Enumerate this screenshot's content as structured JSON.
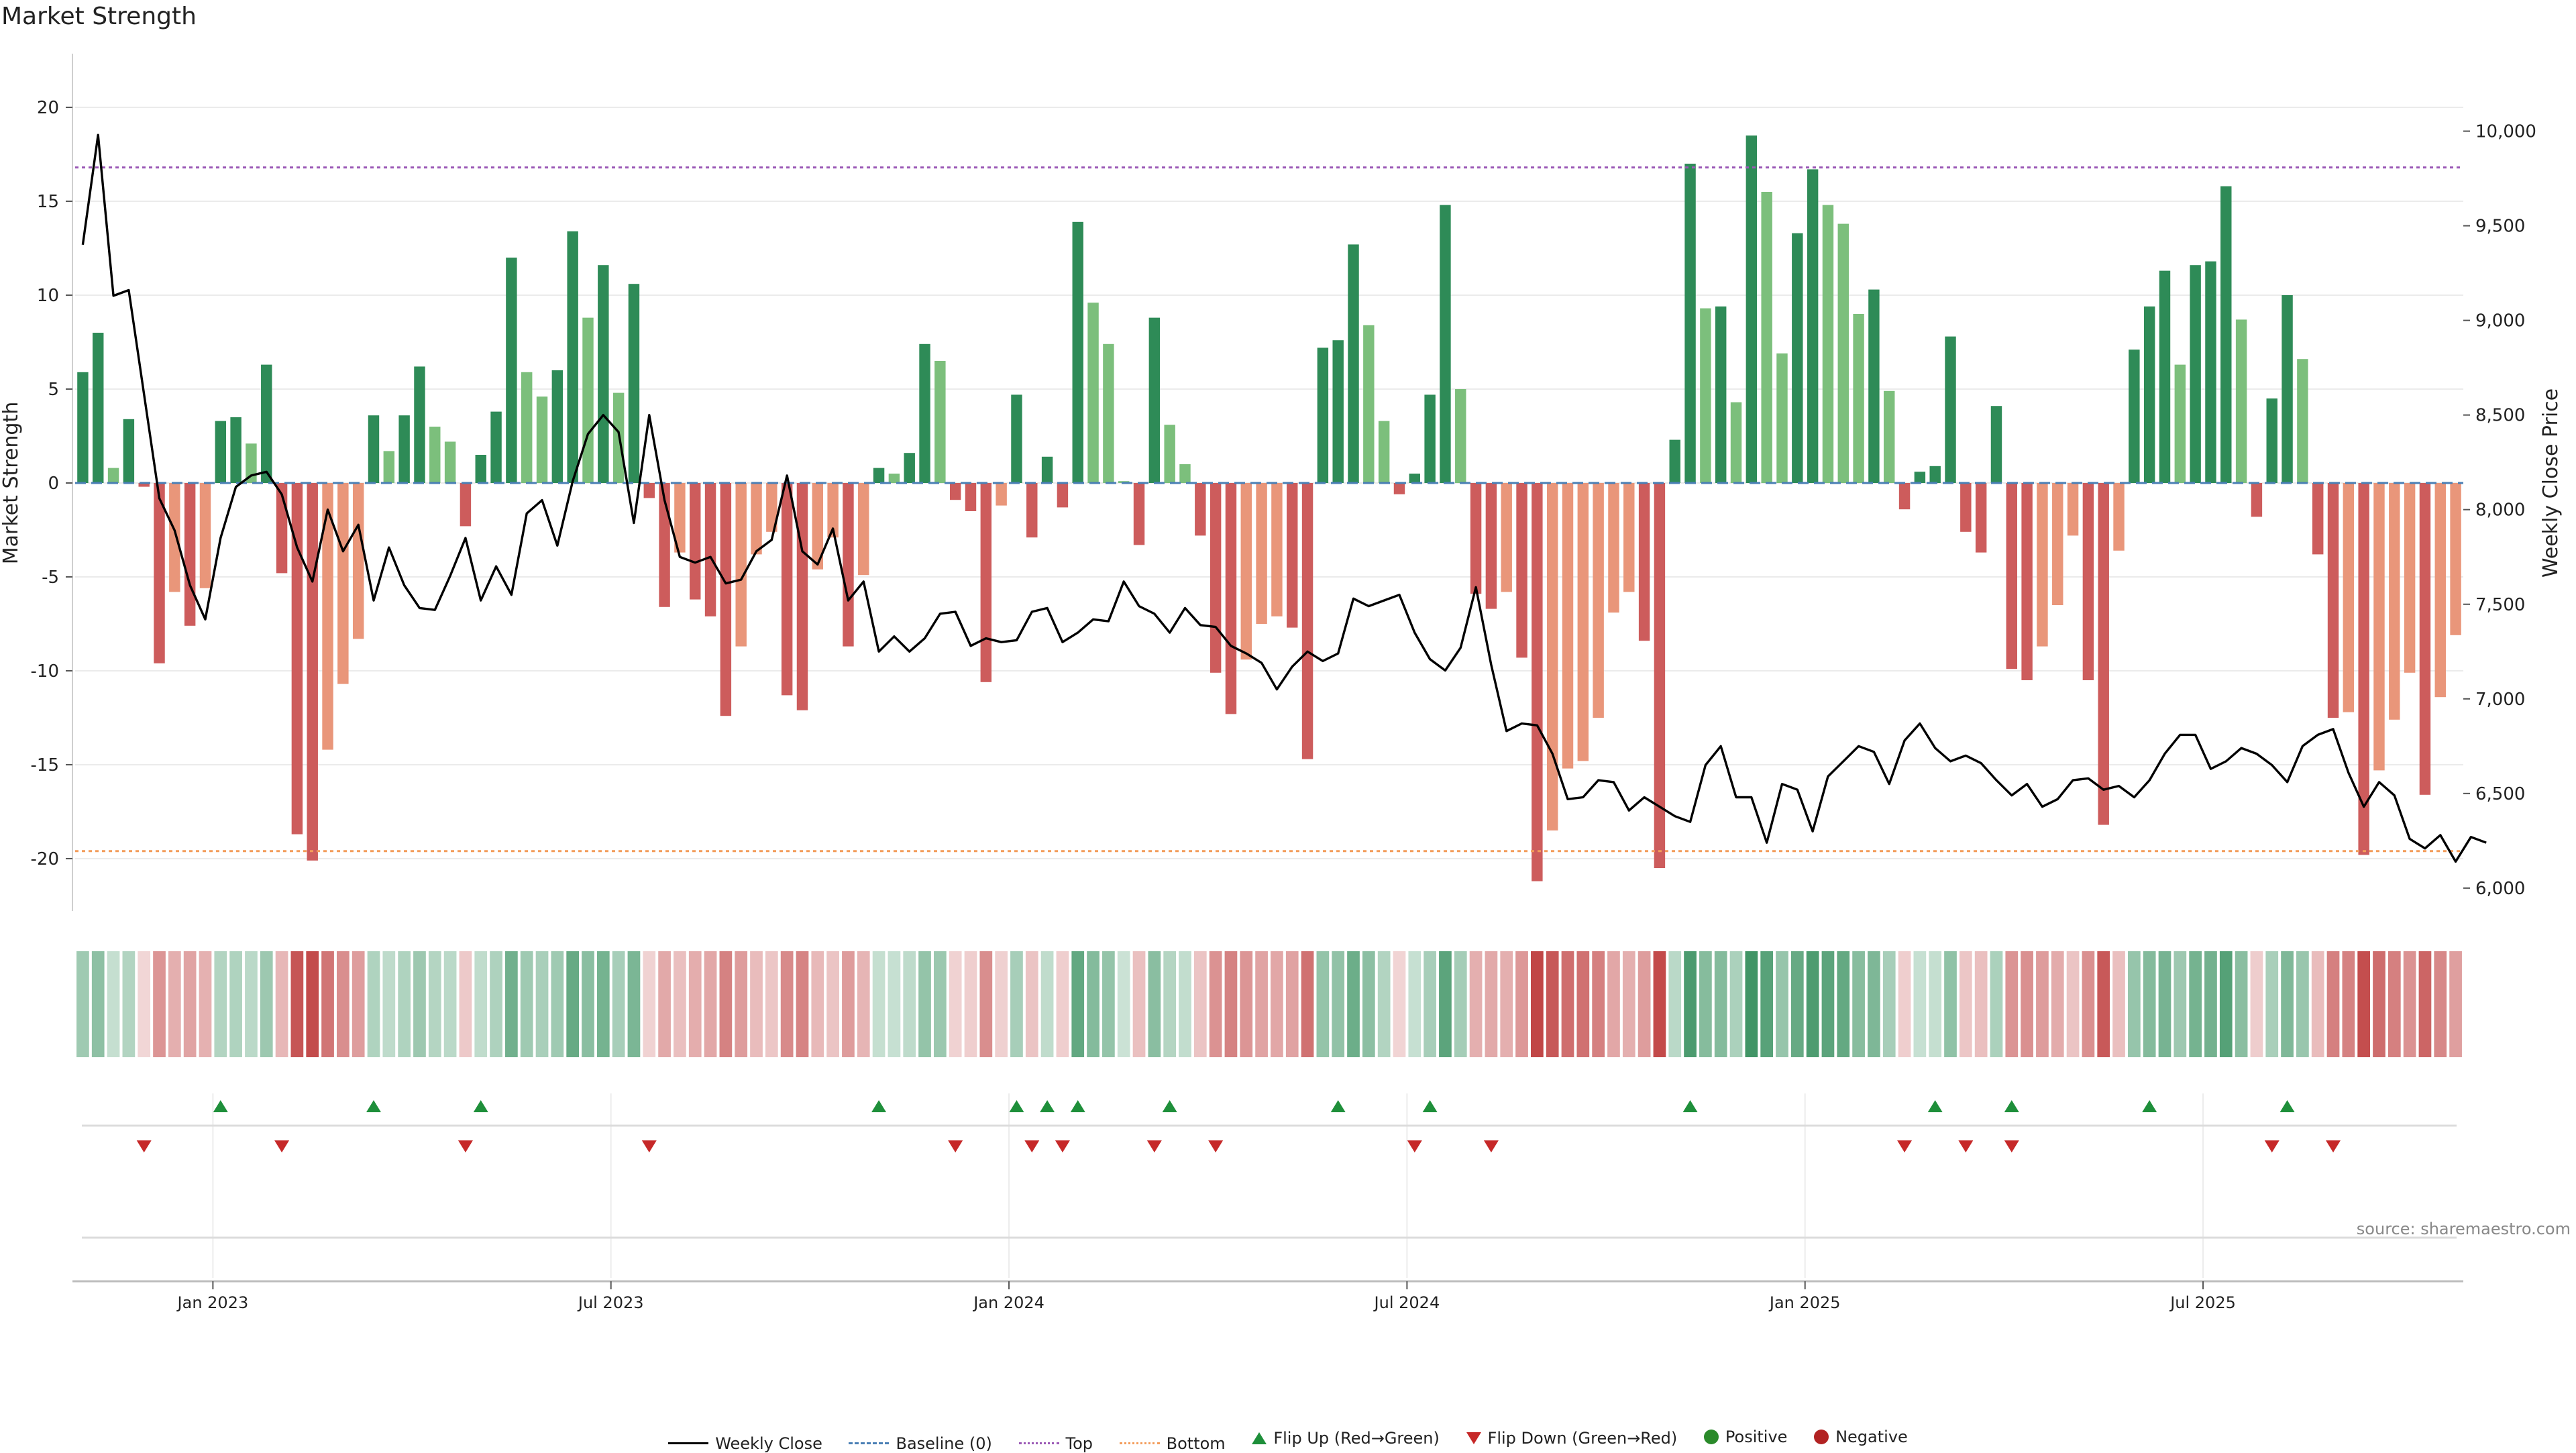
{
  "chart_data": {
    "type": "bar",
    "title": "Market Strength",
    "ylabel": "Market Strength",
    "y2label": "Weekly Close Price",
    "ylim": [
      -22.8,
      23
    ],
    "y2lim": [
      5950,
      10250
    ],
    "yticks": [
      20,
      15,
      10,
      5,
      0,
      -5,
      -10,
      -15,
      -20
    ],
    "y2ticks": [
      "10,000",
      "9,500",
      "9,000",
      "8,500",
      "8,000",
      "7,500",
      "7,000",
      "6,500",
      "6,000"
    ],
    "y2tick_values": [
      10000,
      9500,
      9000,
      8500,
      8000,
      7500,
      7000,
      6500,
      6000
    ],
    "x_ticks": [
      "Jan 2023",
      "Jul 2023",
      "Jan 2024",
      "Jul 2024",
      "Jan 2025",
      "Jul 2025"
    ],
    "x_tick_weeks": [
      9,
      35,
      61,
      87,
      113,
      139
    ],
    "top_line": 16.8,
    "bottom_line": -19.6,
    "strength": [
      5.9,
      8.0,
      0.8,
      3.4,
      -0.2,
      -9.6,
      -5.8,
      -7.6,
      -5.6,
      3.3,
      3.5,
      2.1,
      6.3,
      -4.8,
      -18.7,
      -20.1,
      -14.2,
      -10.7,
      -8.3,
      3.6,
      1.7,
      3.6,
      6.2,
      3.0,
      2.2,
      -2.3,
      1.5,
      3.8,
      12.0,
      5.9,
      4.6,
      6.0,
      13.4,
      8.8,
      11.6,
      4.8,
      10.6,
      -0.8,
      -6.6,
      -3.7,
      -6.2,
      -7.1,
      -12.4,
      -8.7,
      -3.8,
      -2.6,
      -11.3,
      -12.1,
      -4.6,
      -2.9,
      -8.7,
      -4.9,
      0.8,
      0.5,
      1.6,
      7.4,
      6.5,
      -0.9,
      -1.5,
      -10.6,
      -1.2,
      4.7,
      -2.9,
      1.4,
      -1.3,
      13.9,
      9.6,
      7.4,
      0.1,
      -3.3,
      8.8,
      3.1,
      1.0,
      -2.8,
      -10.1,
      -12.3,
      -9.4,
      -7.5,
      -7.1,
      -7.7,
      -14.7,
      7.2,
      7.6,
      12.7,
      8.4,
      3.3,
      -0.6,
      0.5,
      4.7,
      14.8,
      5.0,
      -5.9,
      -6.7,
      -5.8,
      -9.3,
      -21.2,
      -18.5,
      -15.2,
      -14.8,
      -12.5,
      -6.9,
      -5.8,
      -8.4,
      -20.5,
      2.3,
      17.0,
      9.3,
      9.4,
      4.3,
      18.5,
      15.5,
      6.9,
      13.3,
      16.7,
      14.8,
      13.8,
      9.0,
      10.3,
      4.9,
      -1.4,
      0.6,
      0.9,
      7.8,
      -2.6,
      -3.7,
      4.1,
      -9.9,
      -10.5,
      -8.7,
      -6.5,
      -2.8,
      -10.5,
      -18.2,
      -3.6,
      7.1,
      9.4,
      11.3,
      6.3,
      11.6,
      11.8,
      15.8,
      8.7,
      -1.8,
      4.5,
      10.0,
      6.6,
      -3.8,
      -12.5,
      -12.2,
      -19.8,
      -15.3,
      -12.6,
      -10.1,
      -16.6,
      -11.4,
      -8.1
    ],
    "weekly_close": [
      9400,
      9980,
      9130,
      9160,
      8610,
      8060,
      7890,
      7600,
      7420,
      7850,
      8120,
      8180,
      8200,
      8080,
      7800,
      7620,
      8000,
      7780,
      7920,
      7520,
      7800,
      7600,
      7480,
      7470,
      7650,
      7850,
      7520,
      7700,
      7550,
      7980,
      8050,
      7810,
      8150,
      8400,
      8500,
      8410,
      7930,
      8500,
      8050,
      7750,
      7720,
      7750,
      7610,
      7630,
      7780,
      7840,
      8180,
      7780,
      7710,
      7900,
      7520,
      7620,
      7250,
      7330,
      7250,
      7320,
      7450,
      7460,
      7280,
      7320,
      7300,
      7310,
      7460,
      7480,
      7300,
      7350,
      7420,
      7410,
      7620,
      7490,
      7450,
      7350,
      7480,
      7390,
      7380,
      7280,
      7240,
      7190,
      7050,
      7170,
      7250,
      7200,
      7240,
      7530,
      7490,
      7520,
      7550,
      7350,
      7210,
      7150,
      7270,
      7590,
      7180,
      6830,
      6870,
      6860,
      6710,
      6470,
      6480,
      6570,
      6560,
      6410,
      6480,
      6430,
      6380,
      6350,
      6650,
      6750,
      6480,
      6480,
      6240,
      6550,
      6520,
      6300,
      6590,
      6670,
      6750,
      6720,
      6550,
      6780,
      6870,
      6740,
      6670,
      6700,
      6660,
      6570,
      6490,
      6550,
      6430,
      6470,
      6570,
      6580,
      6520,
      6540,
      6480,
      6570,
      6710,
      6810,
      6810,
      6630,
      6670,
      6740,
      6710,
      6650,
      6560,
      6750,
      6810,
      6840,
      6610,
      6430,
      6560,
      6490,
      6260,
      6210,
      6280,
      6140,
      6270,
      6240
    ],
    "flip_up_weeks": [
      9,
      19,
      26,
      52,
      61,
      63,
      65,
      71,
      82,
      88,
      105,
      121,
      126,
      135,
      144
    ],
    "flip_down_weeks": [
      4,
      13,
      25,
      37,
      57,
      62,
      64,
      70,
      74,
      87,
      92,
      119,
      123,
      126,
      143,
      147
    ],
    "legend_placement": "bottom-center"
  },
  "source": "source: sharemaestro.com",
  "legend": {
    "weekly_close": "Weekly Close",
    "baseline": "Baseline (0)",
    "top": "Top",
    "bottom": "Bottom",
    "flip_up": "Flip Up (Red→Green)",
    "flip_down": "Flip Down (Green→Red)",
    "positive": "Positive",
    "negative": "Negative"
  },
  "colors": {
    "pos_dark": "#2e8b57",
    "pos_light": "#7cbf7c",
    "neg_dark": "#cd5c5c",
    "neg_light": "#e9967a",
    "close": "#000000",
    "top": "#9b59b6",
    "bottom": "#f39c5a",
    "baseline": "#4a7fb5",
    "flip_up": "#1e8f3a",
    "flip_down": "#c62828",
    "positive": "#2a8a2a",
    "negative": "#b22222"
  }
}
